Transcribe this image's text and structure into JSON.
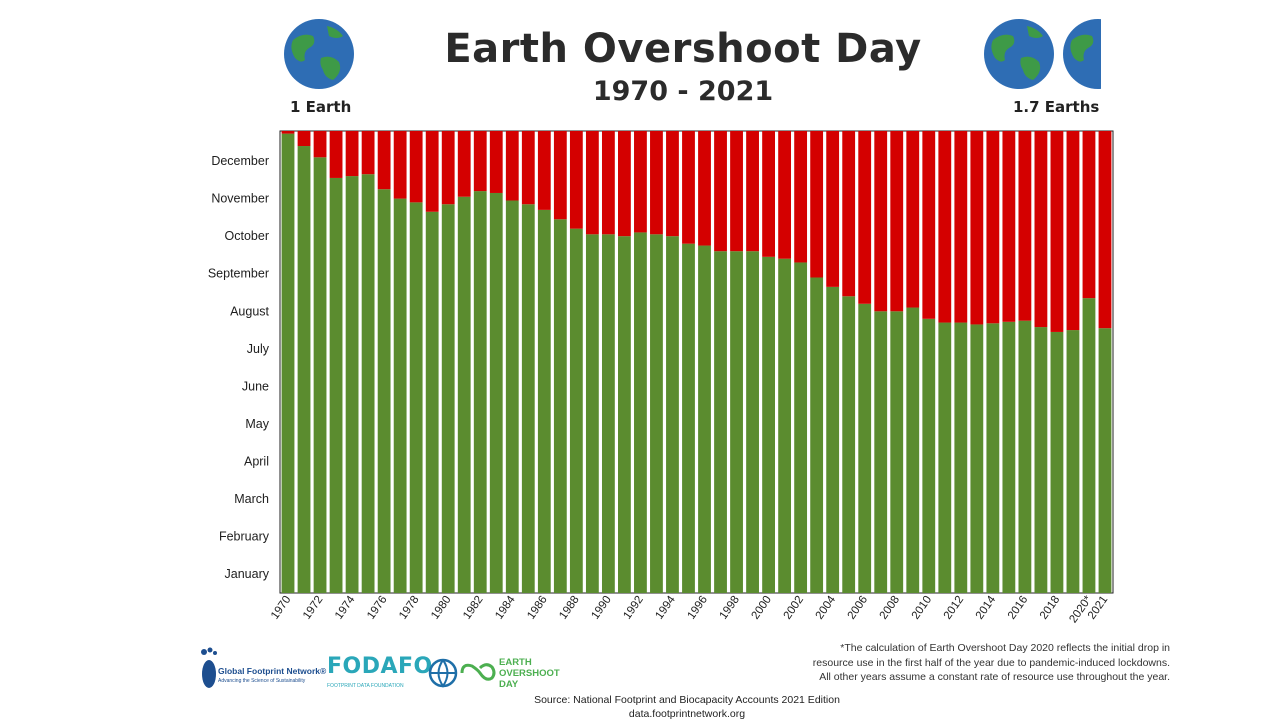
{
  "header": {
    "title": "Earth Overshoot Day",
    "subtitle": "1970 - 2021",
    "left_label": "1 Earth",
    "right_label": "1.7 Earths"
  },
  "footer": {
    "footnote_lines": [
      "*The calculation of Earth Overshoot Day 2020 reflects the initial drop in",
      "resource use in the first half of the year due to pandemic-induced lockdowns.",
      "All other years assume a constant rate of resource use throughout the year."
    ],
    "source": "Source: National Footprint and Biocapacity Accounts 2021 Edition",
    "url": "data.footprintnetwork.org",
    "logos": {
      "gfn_name": "Global Footprint Network®",
      "gfn_tagline": "Advancing the Science of Sustainability",
      "fodafo_name": "FODAFO",
      "fodafo_tagline": "FOOTPRINT DATA FOUNDATION",
      "eod_name": "EARTH OVERSHOOT DAY"
    }
  },
  "colors": {
    "overshoot_red": "#d40000",
    "budget_green": "#5b8c2f",
    "globe_ocean": "#2e6db4",
    "globe_land": "#3e9a47"
  },
  "chart_data": {
    "type": "bar",
    "title": "Earth Overshoot Day",
    "subtitle": "1970 - 2021",
    "y_tick_labels": [
      "January",
      "February",
      "March",
      "April",
      "May",
      "June",
      "July",
      "August",
      "September",
      "October",
      "November",
      "December"
    ],
    "x_tick_labels": [
      "1970",
      "1972",
      "1974",
      "1976",
      "1978",
      "1980",
      "1982",
      "1984",
      "1986",
      "1988",
      "1990",
      "1992",
      "1994",
      "1996",
      "1998",
      "2000",
      "2002",
      "2004",
      "2006",
      "2008",
      "2010",
      "2012",
      "2014",
      "2016",
      "2018",
      "2020*",
      "2021"
    ],
    "categories": [
      "1970",
      "1971",
      "1972",
      "1973",
      "1974",
      "1975",
      "1976",
      "1977",
      "1978",
      "1979",
      "1980",
      "1981",
      "1982",
      "1983",
      "1984",
      "1985",
      "1986",
      "1987",
      "1988",
      "1989",
      "1990",
      "1991",
      "1992",
      "1993",
      "1994",
      "1995",
      "1996",
      "1997",
      "1998",
      "1999",
      "2000",
      "2001",
      "2002",
      "2003",
      "2004",
      "2005",
      "2006",
      "2007",
      "2008",
      "2009",
      "2010",
      "2011",
      "2012",
      "2013",
      "2014",
      "2015",
      "2016",
      "2017",
      "2018",
      "2019",
      "2020",
      "2021"
    ],
    "ylim": [
      0,
      12.3
    ],
    "series": [
      {
        "color": "#5b8c2f",
        "values": [
          12.23,
          11.9,
          11.6,
          11.05,
          11.1,
          11.15,
          10.75,
          10.5,
          10.4,
          10.15,
          10.35,
          10.55,
          10.7,
          10.65,
          10.45,
          10.35,
          10.2,
          9.95,
          9.7,
          9.55,
          9.55,
          9.5,
          9.6,
          9.55,
          9.5,
          9.3,
          9.25,
          9.1,
          9.1,
          9.1,
          8.95,
          8.9,
          8.8,
          8.4,
          8.15,
          7.9,
          7.7,
          7.5,
          7.5,
          7.6,
          7.3,
          7.2,
          7.2,
          7.15,
          7.18,
          7.22,
          7.25,
          7.08,
          6.95,
          7.0,
          7.85,
          7.05
        ]
      },
      {
        "color": "#d40000",
        "values": [
          0.07,
          0.4,
          0.7,
          1.25,
          1.2,
          1.15,
          1.55,
          1.8,
          1.9,
          2.15,
          1.95,
          1.75,
          1.6,
          1.65,
          1.85,
          1.95,
          2.1,
          2.35,
          2.6,
          2.75,
          2.75,
          2.8,
          2.7,
          2.75,
          2.8,
          3.0,
          3.05,
          3.2,
          3.2,
          3.2,
          3.35,
          3.4,
          3.5,
          3.9,
          4.15,
          4.4,
          4.6,
          4.8,
          4.8,
          4.7,
          5.0,
          5.1,
          5.1,
          5.15,
          5.12,
          5.08,
          5.05,
          5.22,
          5.35,
          5.3,
          4.45,
          5.25
        ]
      }
    ],
    "grid": false,
    "legend": "none"
  }
}
